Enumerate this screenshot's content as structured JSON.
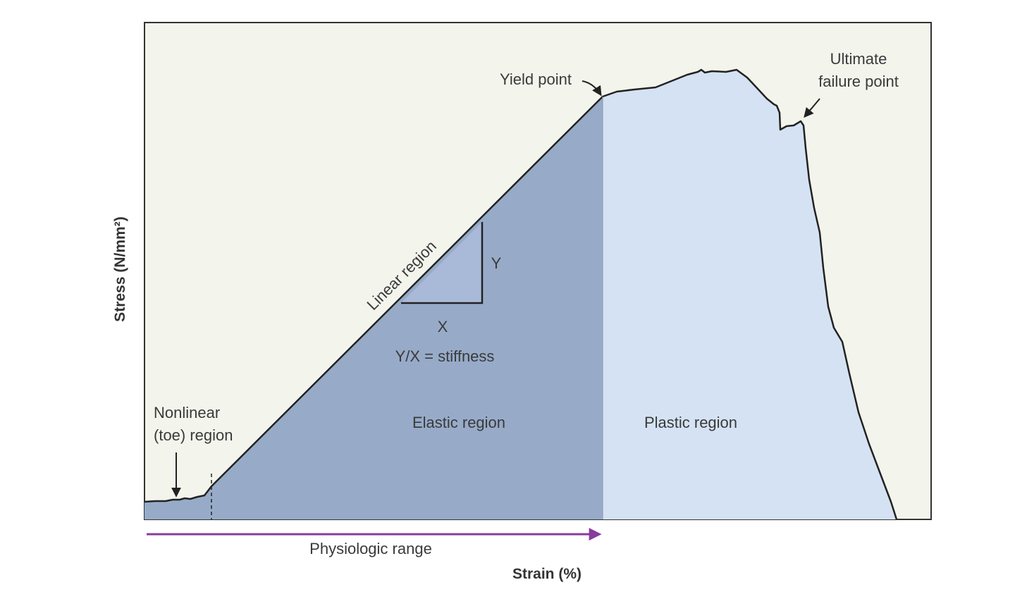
{
  "axes": {
    "x_title": "Strain (%)",
    "y_title": "Stress (N/mm²)"
  },
  "labels": {
    "yield_point": "Yield point",
    "ultimate_line1": "Ultimate",
    "ultimate_line2": "failure point",
    "linear_region": "Linear region",
    "triangle_y": "Y",
    "triangle_x": "X",
    "stiffness": "Y/X = stiffness",
    "elastic_region": "Elastic region",
    "plastic_region": "Plastic region",
    "toe_line1": "Nonlinear",
    "toe_line2": "(toe) region",
    "physiologic_range": "Physiologic range"
  },
  "colors": {
    "plot_background": "#f3f5ec",
    "elastic_fill": "#97abc9",
    "plastic_fill": "#d5e2f3",
    "curve": "#222222",
    "physiologic_arrow": "#8a3b9e"
  }
}
